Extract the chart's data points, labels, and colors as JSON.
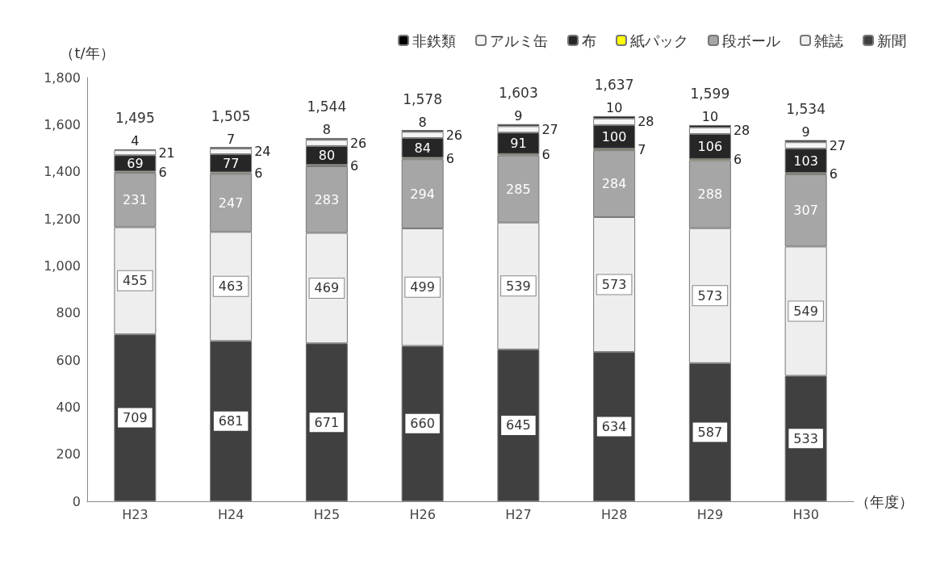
{
  "chart_data": {
    "type": "bar",
    "stacked": true,
    "ylabel": "（t/年）",
    "xlabel": "（年度）",
    "categories": [
      "H23",
      "H24",
      "H25",
      "H26",
      "H27",
      "H28",
      "H29",
      "H30"
    ],
    "series": [
      {
        "name": "新聞",
        "color": "#404040",
        "values": [
          709,
          681,
          671,
          660,
          645,
          634,
          587,
          533
        ]
      },
      {
        "name": "雑誌",
        "color": "#eeeeee",
        "values": [
          455,
          463,
          469,
          499,
          539,
          573,
          573,
          549
        ]
      },
      {
        "name": "段ボール",
        "color": "#a6a6a6",
        "values": [
          231,
          247,
          283,
          294,
          285,
          284,
          288,
          307
        ]
      },
      {
        "name": "紙パック",
        "color": "#ffff00",
        "values": [
          6,
          6,
          6,
          6,
          6,
          7,
          6,
          6
        ]
      },
      {
        "name": "布",
        "color": "#262626",
        "values": [
          69,
          77,
          80,
          84,
          91,
          100,
          106,
          103
        ]
      },
      {
        "name": "アルミ缶",
        "color": "#f5f5f5",
        "values": [
          21,
          24,
          26,
          26,
          27,
          28,
          28,
          27
        ]
      },
      {
        "name": "非鉄類",
        "color": "#000000",
        "values": [
          4,
          7,
          8,
          8,
          9,
          10,
          10,
          9
        ]
      }
    ],
    "totals": [
      "1,495",
      "1,505",
      "1,544",
      "1,578",
      "1,603",
      "1,637",
      "1,599",
      "1,534"
    ],
    "ylim": [
      0,
      1800
    ],
    "yticks": [
      0,
      200,
      400,
      600,
      800,
      {
        "value": 1000,
        "label": "1,000"
      },
      {
        "value": 1200,
        "label": "1,200"
      },
      {
        "value": 1400,
        "label": "1,400"
      },
      {
        "value": 1600,
        "label": "1,600"
      },
      {
        "value": 1800,
        "label": "1,800"
      }
    ],
    "data_labels": true,
    "legend": "top right",
    "grid": false
  }
}
